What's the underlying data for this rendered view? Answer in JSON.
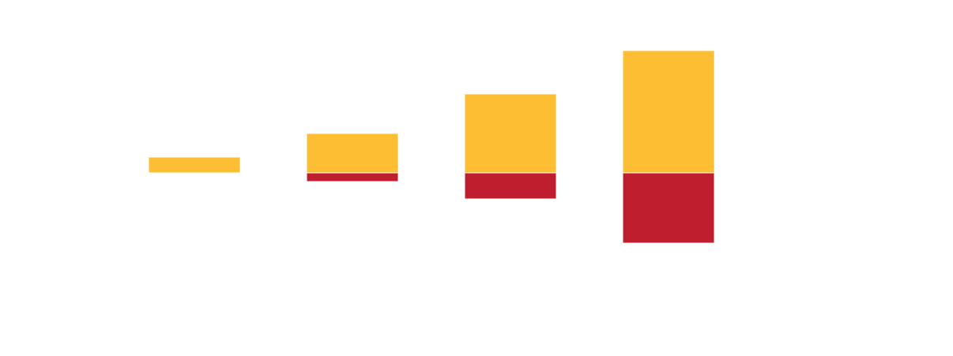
{
  "chart_data": {
    "type": "bar",
    "stacking": "diverging",
    "categories": [
      "",
      "",
      "",
      ""
    ],
    "series": [
      {
        "values": [
          20,
          50,
          100,
          155
        ],
        "color": "#FDBE33"
      },
      {
        "values": [
          0,
          -11,
          -33,
          -89
        ],
        "color": "#BE1E2D"
      }
    ],
    "ylim": [
      -220,
      155
    ],
    "title": "",
    "xlabel": "",
    "ylabel": "",
    "grid": false,
    "legend": "none"
  }
}
